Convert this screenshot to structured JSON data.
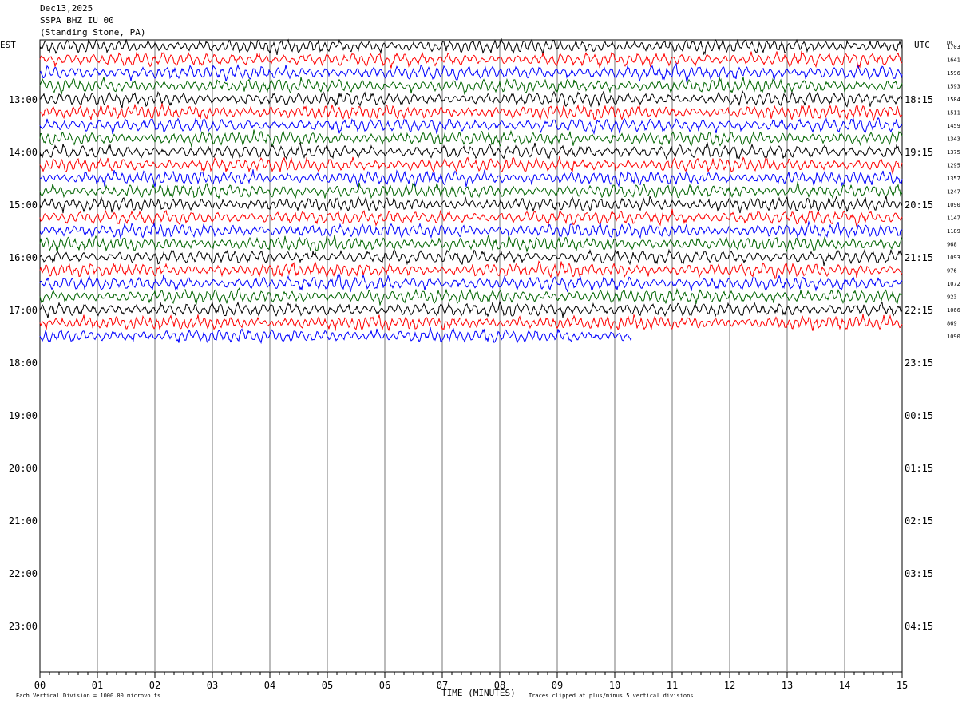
{
  "header": {
    "date": "Dec13,2025",
    "station": "SSPA BHZ IU 00",
    "location": "(Standing Stone, PA)"
  },
  "axis_labels": {
    "left_zone": "EST",
    "right_zone": "UTC",
    "dc": "DC",
    "xlabel": "TIME (MINUTES)",
    "scale_note": "Each Vertical Division = 1000.00 microvolts",
    "clip_note": "Traces clipped at plus/minus 5 vertical divisions"
  },
  "chart_data": {
    "type": "line",
    "title": "SSPA BHZ IU 00",
    "xlabel": "TIME (MINUTES)",
    "xlim": [
      0,
      15
    ],
    "x_ticks": [
      "00",
      "01",
      "02",
      "03",
      "04",
      "05",
      "06",
      "07",
      "08",
      "09",
      "10",
      "11",
      "12",
      "13",
      "14",
      "15"
    ],
    "left_hour_labels": [
      "13:00",
      "14:00",
      "15:00",
      "16:00",
      "17:00",
      "18:00",
      "19:00",
      "20:00",
      "21:00",
      "22:00",
      "23:00"
    ],
    "right_hour_labels": [
      "18:15",
      "19:15",
      "20:15",
      "21:15",
      "22:15",
      "23:15",
      "00:15",
      "01:15",
      "02:15",
      "03:15",
      "04:15"
    ],
    "trace_colors": [
      "#000000",
      "#ff0000",
      "#0000ff",
      "#006400"
    ],
    "trace_count": 23,
    "last_trace_end_minute": 10.3,
    "dc_offsets": [
      "1703",
      "1641",
      "1596",
      "1593",
      "1584",
      "1511",
      "1459",
      "1343",
      "1375",
      "1295",
      "1357",
      "1247",
      "1090",
      "1147",
      "1189",
      "968",
      "1093",
      "976",
      "1072",
      "923",
      "1066",
      "869",
      "1090"
    ],
    "grid": true
  }
}
